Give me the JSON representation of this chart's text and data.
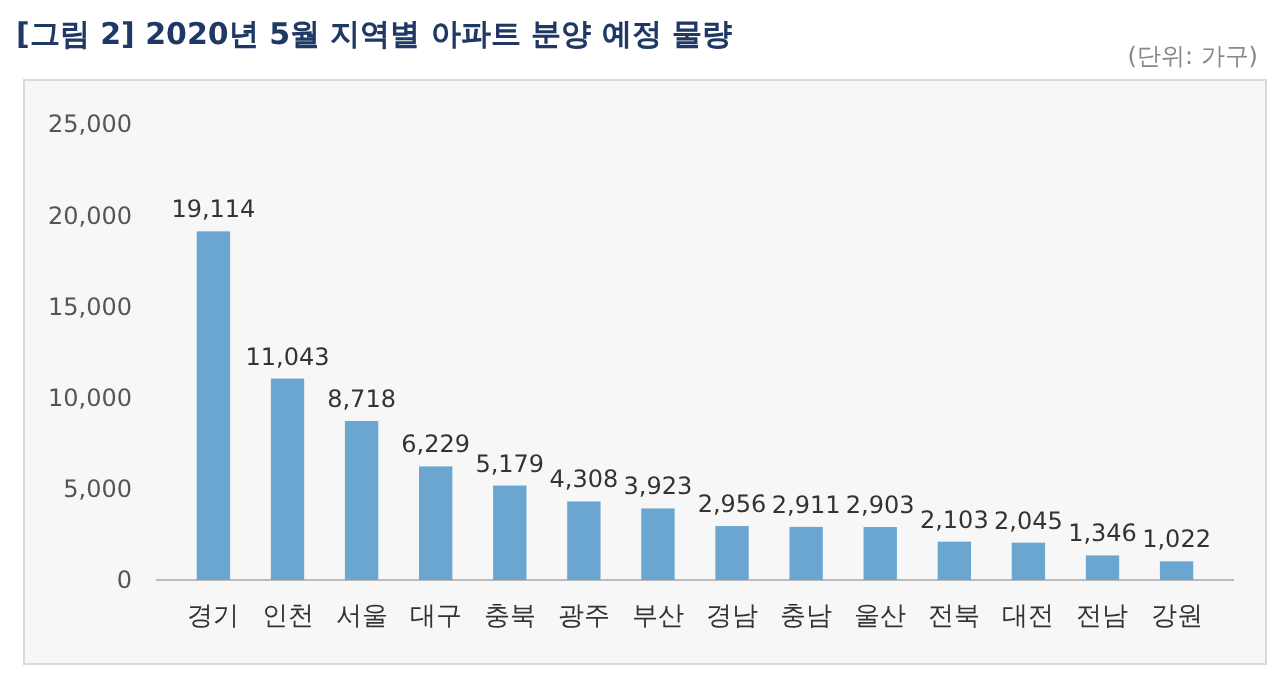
{
  "chart_data": {
    "type": "bar",
    "title": "[그림 2] 2020년 5월 지역별 아파트 분양 예정 물량",
    "annotations": [
      "(단위: 가구)"
    ],
    "categories": [
      "경기",
      "인천",
      "서울",
      "대구",
      "충북",
      "광주",
      "부산",
      "경남",
      "충남",
      "울산",
      "전북",
      "대전",
      "전남",
      "강원"
    ],
    "values": [
      19114,
      11043,
      8718,
      6229,
      5179,
      4308,
      3923,
      2956,
      2911,
      2903,
      2103,
      2045,
      1346,
      1022
    ],
    "color": "#6aa6cf",
    "ylim": [
      0,
      25000
    ],
    "yticks": [
      {
        "value": 0,
        "label": "0"
      },
      {
        "value": 5000,
        "label": "5,000"
      },
      {
        "value": 10000,
        "label": "10,000"
      },
      {
        "value": 15000,
        "label": "15,000"
      },
      {
        "value": 20000,
        "label": "20,000"
      },
      {
        "value": 25000,
        "label": "25,000"
      }
    ],
    "value_labels": [
      "19,114",
      "11,043",
      "8,718",
      "6,229",
      "5,179",
      "4,308",
      "3,923",
      "2,956",
      "2,911",
      "2,903",
      "2,103",
      "2,045",
      "1,346",
      "1,022"
    ],
    "grid": false
  }
}
